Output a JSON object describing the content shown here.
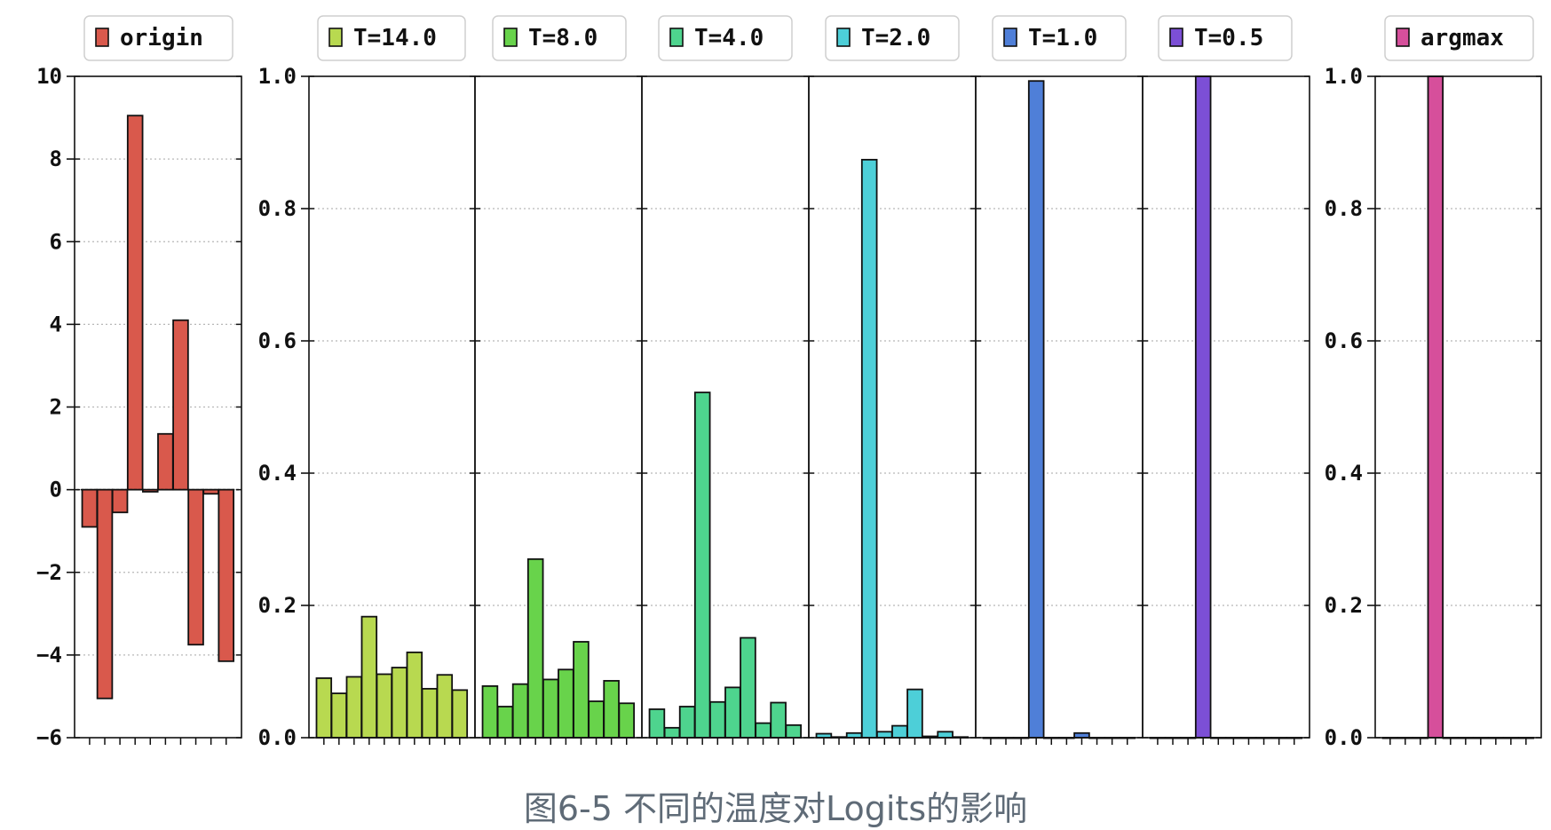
{
  "caption": "图6-5 不同的温度对Logits的影响",
  "chart_data": [
    {
      "type": "bar",
      "legend": "origin",
      "color": "#d9594c",
      "ylim": [
        -6,
        10
      ],
      "yticks": [
        -6,
        -4,
        -2,
        0,
        2,
        4,
        6,
        8,
        10
      ],
      "ytick_labels": [
        "−6",
        "−4",
        "−2",
        "0",
        "2",
        "4",
        "6",
        "8",
        "10"
      ],
      "values": [
        -0.9,
        -5.05,
        -0.55,
        9.05,
        -0.05,
        1.35,
        4.1,
        -3.75,
        -0.1,
        -4.15
      ],
      "grid": true
    },
    {
      "type": "bar",
      "legend": "T=14.0",
      "color": "#b8d950",
      "ylim": [
        0,
        1
      ],
      "yticks": [
        0,
        0.2,
        0.4,
        0.6,
        0.8,
        1.0
      ],
      "ytick_labels": [
        "0.0",
        "0.2",
        "0.4",
        "0.6",
        "0.8",
        "1.0"
      ],
      "values": [
        0.09,
        0.067,
        0.092,
        0.183,
        0.096,
        0.106,
        0.129,
        0.074,
        0.095,
        0.072
      ],
      "grid": true
    },
    {
      "type": "bar",
      "legend": "T=8.0",
      "color": "#68d34b",
      "ylim": [
        0,
        1
      ],
      "values": [
        0.078,
        0.047,
        0.081,
        0.27,
        0.088,
        0.103,
        0.145,
        0.055,
        0.086,
        0.052
      ],
      "grid": true
    },
    {
      "type": "bar",
      "legend": "T=4.0",
      "color": "#4ed48e",
      "ylim": [
        0,
        1
      ],
      "values": [
        0.043,
        0.015,
        0.047,
        0.522,
        0.054,
        0.076,
        0.151,
        0.022,
        0.053,
        0.019
      ],
      "grid": true
    },
    {
      "type": "bar",
      "legend": "T=2.0",
      "color": "#4dcfd8",
      "ylim": [
        0,
        1
      ],
      "values": [
        0.006,
        0.001,
        0.007,
        0.874,
        0.009,
        0.018,
        0.073,
        0.002,
        0.009,
        0.001
      ],
      "grid": true
    },
    {
      "type": "bar",
      "legend": "T=1.0",
      "color": "#4f7fd8",
      "ylim": [
        0,
        1
      ],
      "values": [
        0.0,
        0.0,
        0.0,
        0.993,
        0.0,
        0.0,
        0.007,
        0.0,
        0.0,
        0.0
      ],
      "grid": true
    },
    {
      "type": "bar",
      "legend": "T=0.5",
      "color": "#7c4fd6",
      "ylim": [
        0,
        1
      ],
      "values": [
        0.0,
        0.0,
        0.0,
        1.0,
        0.0,
        0.0,
        0.0,
        0.0,
        0.0,
        0.0
      ],
      "grid": true
    },
    {
      "type": "bar",
      "legend": "argmax",
      "color": "#d64f9b",
      "ylim": [
        0,
        1
      ],
      "yticks": [
        0,
        0.2,
        0.4,
        0.6,
        0.8,
        1.0
      ],
      "ytick_labels": [
        "0.0",
        "0.2",
        "0.4",
        "0.6",
        "0.8",
        "1.0"
      ],
      "values": [
        0.0,
        0.0,
        0.0,
        1.0,
        0.0,
        0.0,
        0.0,
        0.0,
        0.0,
        0.0
      ],
      "grid": true
    }
  ]
}
